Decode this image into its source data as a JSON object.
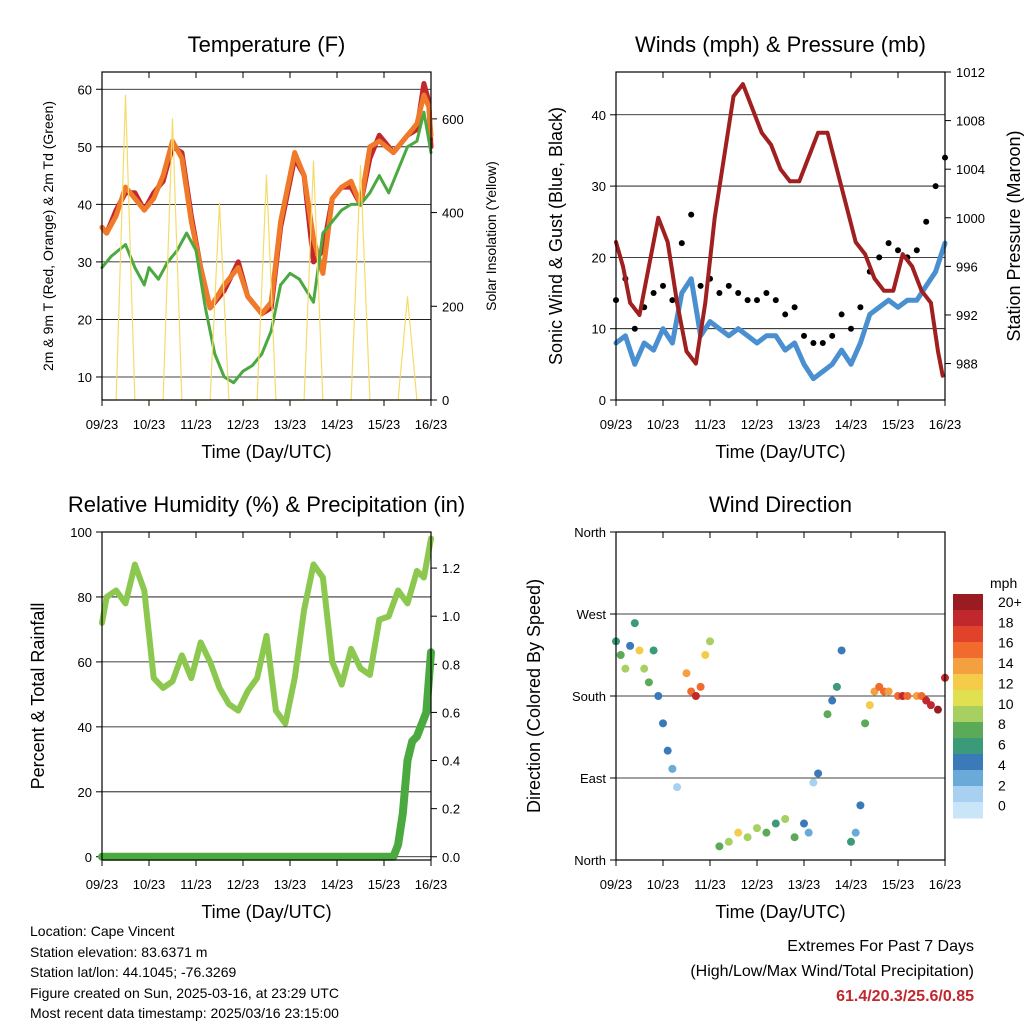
{
  "chart_data": [
    {
      "type": "line",
      "title": "Temperature (F)",
      "xlabel": "Time (Day/UTC)",
      "ylabel": "2m & 9m T (Red, Orange) & 2m Td (Green)",
      "y2label": "Solar Insolation (Yellow)",
      "x_ticks": [
        "09/23",
        "10/23",
        "11/23",
        "12/23",
        "13/23",
        "14/23",
        "15/23",
        "16/23"
      ],
      "xlim": [
        0,
        7
      ],
      "ylim": [
        6,
        63
      ],
      "y2lim": [
        0,
        700
      ],
      "y_ticks": [
        10,
        20,
        30,
        40,
        50,
        60
      ],
      "y2_ticks": [
        0,
        200,
        400,
        600
      ],
      "grid": true,
      "series": [
        {
          "key": "red",
          "color": "#c0282d",
          "x": [
            0,
            0.1,
            0.3,
            0.5,
            0.7,
            0.9,
            1.1,
            1.3,
            1.5,
            1.7,
            1.9,
            2.1,
            2.3,
            2.6,
            2.9,
            3.1,
            3.4,
            3.6,
            3.8,
            4.1,
            4.3,
            4.5,
            4.7,
            4.9,
            5.1,
            5.3,
            5.5,
            5.7,
            5.9,
            6.2,
            6.5,
            6.7,
            6.85,
            6.95,
            7.0
          ],
          "values": [
            36,
            35,
            39,
            42,
            42,
            39,
            42,
            44,
            50,
            49,
            38,
            29,
            22,
            25,
            30,
            24,
            21,
            22,
            36,
            48,
            45,
            30,
            32,
            41,
            43,
            43,
            40,
            48,
            52,
            49,
            52,
            53,
            61,
            58,
            50
          ]
        },
        {
          "key": "orange",
          "color": "#f07a2a",
          "x": [
            0,
            0.1,
            0.3,
            0.5,
            0.7,
            0.9,
            1.1,
            1.3,
            1.5,
            1.7,
            1.9,
            2.1,
            2.3,
            2.6,
            2.9,
            3.1,
            3.4,
            3.6,
            3.8,
            4.1,
            4.3,
            4.5,
            4.7,
            4.9,
            5.1,
            5.3,
            5.5,
            5.7,
            5.9,
            6.2,
            6.5,
            6.7,
            6.85,
            6.95,
            7.0
          ],
          "values": [
            36,
            35,
            38,
            43,
            41,
            39,
            41,
            45,
            51,
            48,
            37,
            29,
            22,
            26,
            29,
            24,
            21,
            23,
            37,
            49,
            45,
            34,
            28,
            41,
            43,
            44,
            40,
            50,
            51,
            49,
            52,
            54,
            59,
            57,
            52
          ]
        },
        {
          "key": "green",
          "color": "#4aaa40",
          "x": [
            0,
            0.2,
            0.5,
            0.7,
            0.9,
            1.0,
            1.2,
            1.4,
            1.6,
            1.8,
            2.0,
            2.2,
            2.4,
            2.6,
            2.8,
            3.0,
            3.2,
            3.4,
            3.6,
            3.8,
            4.0,
            4.2,
            4.5,
            4.7,
            4.9,
            5.1,
            5.3,
            5.5,
            5.7,
            5.9,
            6.1,
            6.3,
            6.5,
            6.7,
            6.85,
            7.0
          ],
          "values": [
            29,
            31,
            33,
            29,
            26,
            29,
            27,
            30,
            32,
            35,
            32,
            22,
            14,
            10,
            9,
            11,
            12,
            14,
            18,
            26,
            28,
            27,
            23,
            35,
            37,
            39,
            40,
            40,
            42,
            45,
            42,
            46,
            50,
            51,
            56,
            49
          ]
        },
        {
          "key": "yellow",
          "color": "#f5dc6a",
          "axis": "y2",
          "x": [
            0,
            0.3,
            0.5,
            0.7,
            0.95,
            1.3,
            1.5,
            1.7,
            1.95,
            2.3,
            2.5,
            2.7,
            2.95,
            3.3,
            3.5,
            3.7,
            3.95,
            4.3,
            4.5,
            4.7,
            4.95,
            5.3,
            5.5,
            5.7,
            5.95,
            6.3,
            6.5,
            6.7,
            6.95
          ],
          "values": [
            0,
            0,
            650,
            0,
            0,
            0,
            600,
            0,
            0,
            0,
            420,
            0,
            0,
            0,
            480,
            0,
            0,
            0,
            510,
            0,
            0,
            0,
            500,
            0,
            0,
            0,
            220,
            0,
            0
          ]
        }
      ]
    },
    {
      "type": "line",
      "title": "Winds (mph) & Pressure (mb)",
      "xlabel": "Time (Day/UTC)",
      "ylabel": "Sonic Wind & Gust (Blue, Black)",
      "y2label": "Station Pressure (Maroon)",
      "x_ticks": [
        "09/23",
        "10/23",
        "11/23",
        "12/23",
        "13/23",
        "14/23",
        "15/23",
        "16/23"
      ],
      "xlim": [
        0,
        7
      ],
      "ylim": [
        0,
        46
      ],
      "y2lim": [
        985,
        1012
      ],
      "y_ticks": [
        0,
        10,
        20,
        30,
        40
      ],
      "y2_ticks": [
        988,
        992,
        996,
        1000,
        1004,
        1008,
        1012
      ],
      "grid": true,
      "series": [
        {
          "key": "wind",
          "color": "#4a90d0",
          "x": [
            0,
            0.2,
            0.4,
            0.6,
            0.8,
            1.0,
            1.2,
            1.4,
            1.6,
            1.8,
            2.0,
            2.2,
            2.4,
            2.6,
            2.8,
            3.0,
            3.2,
            3.4,
            3.6,
            3.8,
            4.0,
            4.2,
            4.4,
            4.6,
            4.8,
            5.0,
            5.2,
            5.4,
            5.6,
            5.8,
            6.0,
            6.2,
            6.4,
            6.6,
            6.8,
            7.0
          ],
          "values": [
            8,
            9,
            5,
            8,
            7,
            10,
            8,
            15,
            17,
            9,
            11,
            10,
            9,
            10,
            9,
            8,
            9,
            9,
            7,
            8,
            5,
            3,
            4,
            5,
            7,
            5,
            8,
            12,
            13,
            14,
            13,
            14,
            14,
            16,
            18,
            22
          ]
        },
        {
          "key": "gust",
          "color": "#000000",
          "x": [
            0,
            0.2,
            0.4,
            0.6,
            0.8,
            1.0,
            1.2,
            1.4,
            1.6,
            1.8,
            2.0,
            2.2,
            2.4,
            2.6,
            2.8,
            3.0,
            3.2,
            3.4,
            3.6,
            3.8,
            4.0,
            4.2,
            4.4,
            4.6,
            4.8,
            5.0,
            5.2,
            5.4,
            5.6,
            5.8,
            6.0,
            6.2,
            6.4,
            6.6,
            6.8,
            7.0
          ],
          "values": [
            14,
            17,
            10,
            13,
            15,
            16,
            14,
            22,
            26,
            16,
            17,
            15,
            16,
            15,
            14,
            14,
            15,
            14,
            12,
            13,
            9,
            8,
            8,
            9,
            12,
            10,
            13,
            18,
            20,
            22,
            21,
            20,
            21,
            25,
            30,
            34
          ]
        },
        {
          "key": "pressure",
          "color": "#a02020",
          "axis": "y2",
          "x": [
            0,
            0.15,
            0.3,
            0.5,
            0.7,
            0.9,
            1.1,
            1.3,
            1.5,
            1.7,
            1.9,
            2.1,
            2.3,
            2.5,
            2.7,
            2.9,
            3.1,
            3.3,
            3.5,
            3.7,
            3.9,
            4.1,
            4.3,
            4.5,
            4.7,
            4.9,
            5.1,
            5.3,
            5.5,
            5.7,
            5.9,
            6.1,
            6.3,
            6.5,
            6.7,
            6.85,
            6.95
          ],
          "values": [
            998,
            996,
            993,
            992,
            996,
            1000,
            998,
            993,
            989,
            988,
            993,
            1000,
            1005,
            1010,
            1011,
            1009,
            1007,
            1006,
            1004,
            1003,
            1003,
            1005,
            1007,
            1007,
            1004,
            1001,
            998,
            997,
            995,
            994,
            994,
            997,
            996,
            994,
            993,
            989,
            987
          ]
        }
      ]
    },
    {
      "type": "line",
      "title": "Relative Humidity (%) & Precipitation (in)",
      "xlabel": "Time (Day/UTC)",
      "ylabel": "Percent & Total Rainfall",
      "x_ticks": [
        "09/23",
        "10/23",
        "11/23",
        "12/23",
        "13/23",
        "14/23",
        "15/23",
        "16/23"
      ],
      "xlim": [
        0,
        7
      ],
      "ylim": [
        -1,
        100
      ],
      "y2lim": [
        -0.0135,
        1.35
      ],
      "y_ticks": [
        0,
        20,
        40,
        60,
        80,
        100
      ],
      "y2_ticks": [
        0.0,
        0.2,
        0.4,
        0.6,
        0.8,
        1.0,
        1.2
      ],
      "grid": true,
      "series": [
        {
          "key": "rh",
          "color": "#8cc850",
          "x": [
            0,
            0.1,
            0.3,
            0.5,
            0.7,
            0.9,
            1.1,
            1.3,
            1.5,
            1.7,
            1.9,
            2.1,
            2.3,
            2.5,
            2.7,
            2.9,
            3.1,
            3.3,
            3.5,
            3.7,
            3.9,
            4.1,
            4.3,
            4.5,
            4.7,
            4.9,
            5.1,
            5.3,
            5.5,
            5.7,
            5.9,
            6.1,
            6.3,
            6.5,
            6.7,
            6.85,
            7.0
          ],
          "values": [
            72,
            80,
            82,
            78,
            90,
            82,
            55,
            52,
            54,
            62,
            55,
            66,
            60,
            52,
            47,
            45,
            51,
            55,
            68,
            45,
            41,
            55,
            76,
            90,
            86,
            60,
            53,
            64,
            58,
            56,
            73,
            74,
            82,
            78,
            88,
            86,
            98
          ]
        },
        {
          "key": "rain",
          "color": "#4aaa40",
          "axis": "y2",
          "x": [
            0,
            1,
            2,
            3,
            4,
            5,
            6.0,
            6.2,
            6.3,
            6.4,
            6.5,
            6.6,
            6.7,
            6.8,
            6.9,
            7.0
          ],
          "values": [
            0,
            0,
            0,
            0,
            0,
            0,
            0,
            0,
            0.05,
            0.18,
            0.4,
            0.48,
            0.5,
            0.55,
            0.6,
            0.85
          ]
        }
      ]
    },
    {
      "type": "scatter",
      "title": "Wind Direction",
      "xlabel": "Time (Day/UTC)",
      "ylabel": "Direction (Colored By Speed)",
      "x_ticks": [
        "09/23",
        "10/23",
        "11/23",
        "12/23",
        "13/23",
        "14/23",
        "15/23",
        "16/23"
      ],
      "xlim": [
        0,
        7
      ],
      "ylim": [
        0,
        360
      ],
      "y_ticks": [
        "North",
        "East",
        "South",
        "West",
        "North"
      ],
      "grid": true,
      "legend_title": "mph",
      "legend_labels": [
        "20+",
        "18",
        "16",
        "14",
        "12",
        "10",
        "8",
        "6",
        "4",
        "2",
        "0"
      ],
      "legend_colors": [
        "#9b1c20",
        "#c0282d",
        "#e0432a",
        "#f26b2e",
        "#f5a040",
        "#f4cc4a",
        "#e0e050",
        "#a8d060",
        "#5aaa58",
        "#3a9a7a",
        "#3a7ab8",
        "#6aaad8",
        "#a8d0f0",
        "#c8e6f8"
      ],
      "x": [
        0.0,
        0.1,
        0.2,
        0.3,
        0.4,
        0.5,
        0.6,
        0.7,
        0.8,
        0.9,
        1.0,
        1.1,
        1.2,
        1.3,
        1.5,
        1.6,
        1.7,
        1.8,
        1.9,
        2.0,
        2.2,
        2.4,
        2.6,
        2.8,
        3.0,
        3.2,
        3.4,
        3.6,
        3.8,
        4.0,
        4.1,
        4.2,
        4.3,
        4.5,
        4.6,
        4.7,
        4.8,
        5.0,
        5.1,
        5.2,
        5.3,
        5.4,
        5.5,
        5.6,
        5.7,
        5.8,
        6.0,
        6.1,
        6.2,
        6.4,
        6.5,
        6.6,
        6.7,
        6.85,
        7.0
      ],
      "y": [
        240,
        225,
        210,
        235,
        260,
        230,
        210,
        195,
        230,
        180,
        150,
        120,
        100,
        80,
        205,
        185,
        180,
        190,
        225,
        240,
        15,
        20,
        30,
        25,
        35,
        30,
        40,
        45,
        25,
        40,
        30,
        85,
        95,
        160,
        175,
        190,
        230,
        20,
        30,
        60,
        150,
        170,
        185,
        190,
        185,
        185,
        180,
        180,
        180,
        180,
        180,
        175,
        170,
        165,
        200
      ],
      "speed": [
        6,
        8,
        10,
        5,
        6,
        12,
        9,
        8,
        6,
        4,
        5,
        4,
        3,
        2,
        14,
        16,
        18,
        15,
        12,
        10,
        8,
        10,
        12,
        9,
        10,
        8,
        6,
        9,
        7,
        4,
        3,
        2,
        4,
        8,
        5,
        6,
        4,
        6,
        3,
        5,
        8,
        12,
        14,
        16,
        15,
        14,
        16,
        18,
        15,
        14,
        16,
        18,
        19,
        20,
        18
      ]
    }
  ],
  "info": {
    "location": "Location: Cape Vincent",
    "elevation": "Station elevation: 83.6371 m",
    "latlon": "Station lat/lon: 44.1045; -76.3269",
    "created": "Figure created on Sun, 2025-03-16, at 23:29 UTC",
    "timestamp": "Most recent data timestamp: 2025/03/16 23:15:00"
  },
  "extremes": {
    "title": "Extremes For Past 7 Days",
    "subtitle": "(High/Low/Max Wind/Total Precipitation)",
    "values": "61.4/20.3/25.6/0.85"
  }
}
